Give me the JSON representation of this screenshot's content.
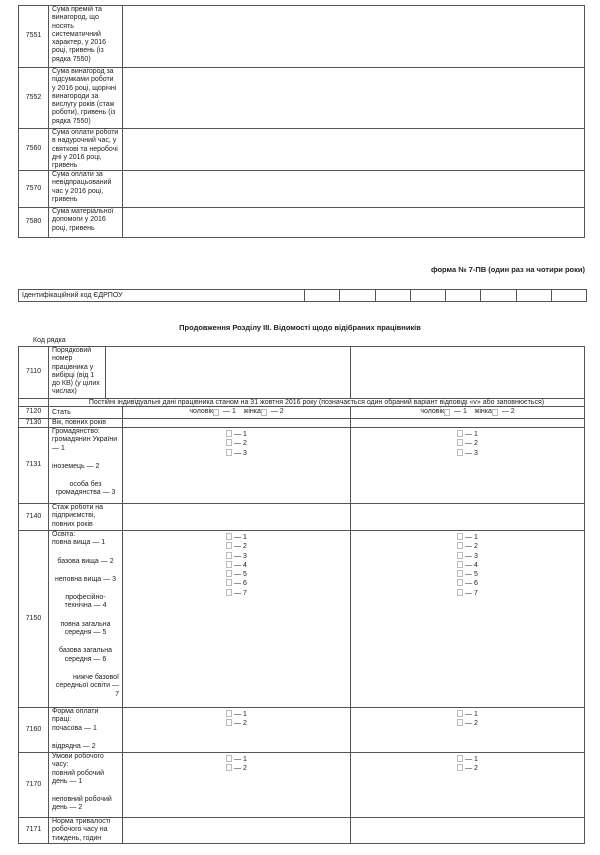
{
  "top_table": [
    {
      "code": "7551",
      "label": "Сума премій та\nвинагород, що\nносять\nсистематичний\nхарактер, у 2016\nроці, гривень (із\nрядка 7550)"
    },
    {
      "code": "7552",
      "label": "Сума винагород за\nпідсумками роботи\nу 2016 році, щорічні\nвинагороди за\nвислугу років (стаж\nроботи), гривень (із\nрядка 7550)"
    },
    {
      "code": "7560",
      "label": "Сума оплати роботи\nв надурочний час, у\nсвяткові та неробочі\nдні у 2016 році,\nгривень"
    },
    {
      "code": "7570",
      "label": "Сума оплати за\nневідпрацьований\nчас у 2016 році,\nгривень"
    },
    {
      "code": "7580",
      "label": "Сума матеріальної\nдопомоги у 2016\nроці, гривень"
    }
  ],
  "form_title": "форма № 7-ПВ (один раз на чотири роки)",
  "edrpou_label": "Ідентифікаційний код ЄДРПОУ",
  "section_title": "Продовження Розділу ІІІ. Відомості щодо відібраних працівників",
  "code_header": "Код рядка",
  "row_7110": {
    "code": "7110",
    "label": "Порядковий\nномер\nпрацівника у\nвибірці (від 1\nдо КВ) (у цілих\nчислах)"
  },
  "permanent_header": "Постійні індивідуальні дані працівника станом на 31 жовтня 2016 року (позначається один обраний варіант відповіді «v» або заповнюється)",
  "row_7120": {
    "code": "7120",
    "label": "Стать",
    "male": "чоловік",
    "male_code": " — 1",
    "female": "жінка",
    "female_code": " — 2"
  },
  "rows": [
    {
      "code": "7130",
      "parts": [
        {
          "t": "Вік, повних років",
          "a": "l"
        }
      ],
      "options": []
    },
    {
      "code": "7131",
      "parts": [
        {
          "t": "Громадянство:\nгромадянин України\n— 1",
          "a": "l"
        },
        {
          "t": "іноземець — 2",
          "a": "l"
        },
        {
          "t": "особа без\nгромадянства — 3",
          "a": "c"
        }
      ],
      "options": [
        "— 1",
        "— 2",
        "— 3"
      ]
    },
    {
      "code": "7140",
      "parts": [
        {
          "t": "Стаж роботи на\nпідприємстві,\nповних років",
          "a": "l"
        }
      ],
      "options": []
    },
    {
      "code": "7150",
      "parts": [
        {
          "t": "Освіта:\nповна вища — 1",
          "a": "l"
        },
        {
          "t": "базова вища — 2",
          "a": "c"
        },
        {
          "t": "неповна вища — 3",
          "a": "c"
        },
        {
          "t": "професійно-\nтехнічна — 4",
          "a": "c"
        },
        {
          "t": "повна загальна\nсередня — 5",
          "a": "c"
        },
        {
          "t": "базова загальна\nсередня — 6",
          "a": "c"
        },
        {
          "t": "нижче базової\nсередньої освіти —\n7",
          "a": "r"
        }
      ],
      "options": [
        "— 1",
        "— 2",
        "— 3",
        "— 4",
        "— 5",
        "— 6",
        "— 7"
      ]
    },
    {
      "code": "7160",
      "parts": [
        {
          "t": "Форма оплати\nпраці:\nпочасова — 1",
          "a": "l"
        },
        {
          "t": "відрядна — 2",
          "a": "l"
        }
      ],
      "options": [
        "— 1",
        "— 2"
      ]
    },
    {
      "code": "7170",
      "parts": [
        {
          "t": "Умови робочого\nчасу:\nповний робочий\nдень — 1",
          "a": "l"
        },
        {
          "t": "неповний робочий\nдень — 2",
          "a": "l"
        }
      ],
      "options": [
        "— 1",
        "— 2"
      ]
    },
    {
      "code": "7171",
      "parts": [
        {
          "t": "Норма тривалості\nробочого часу на\nтиждень, годин",
          "a": "l"
        }
      ],
      "options": []
    }
  ]
}
